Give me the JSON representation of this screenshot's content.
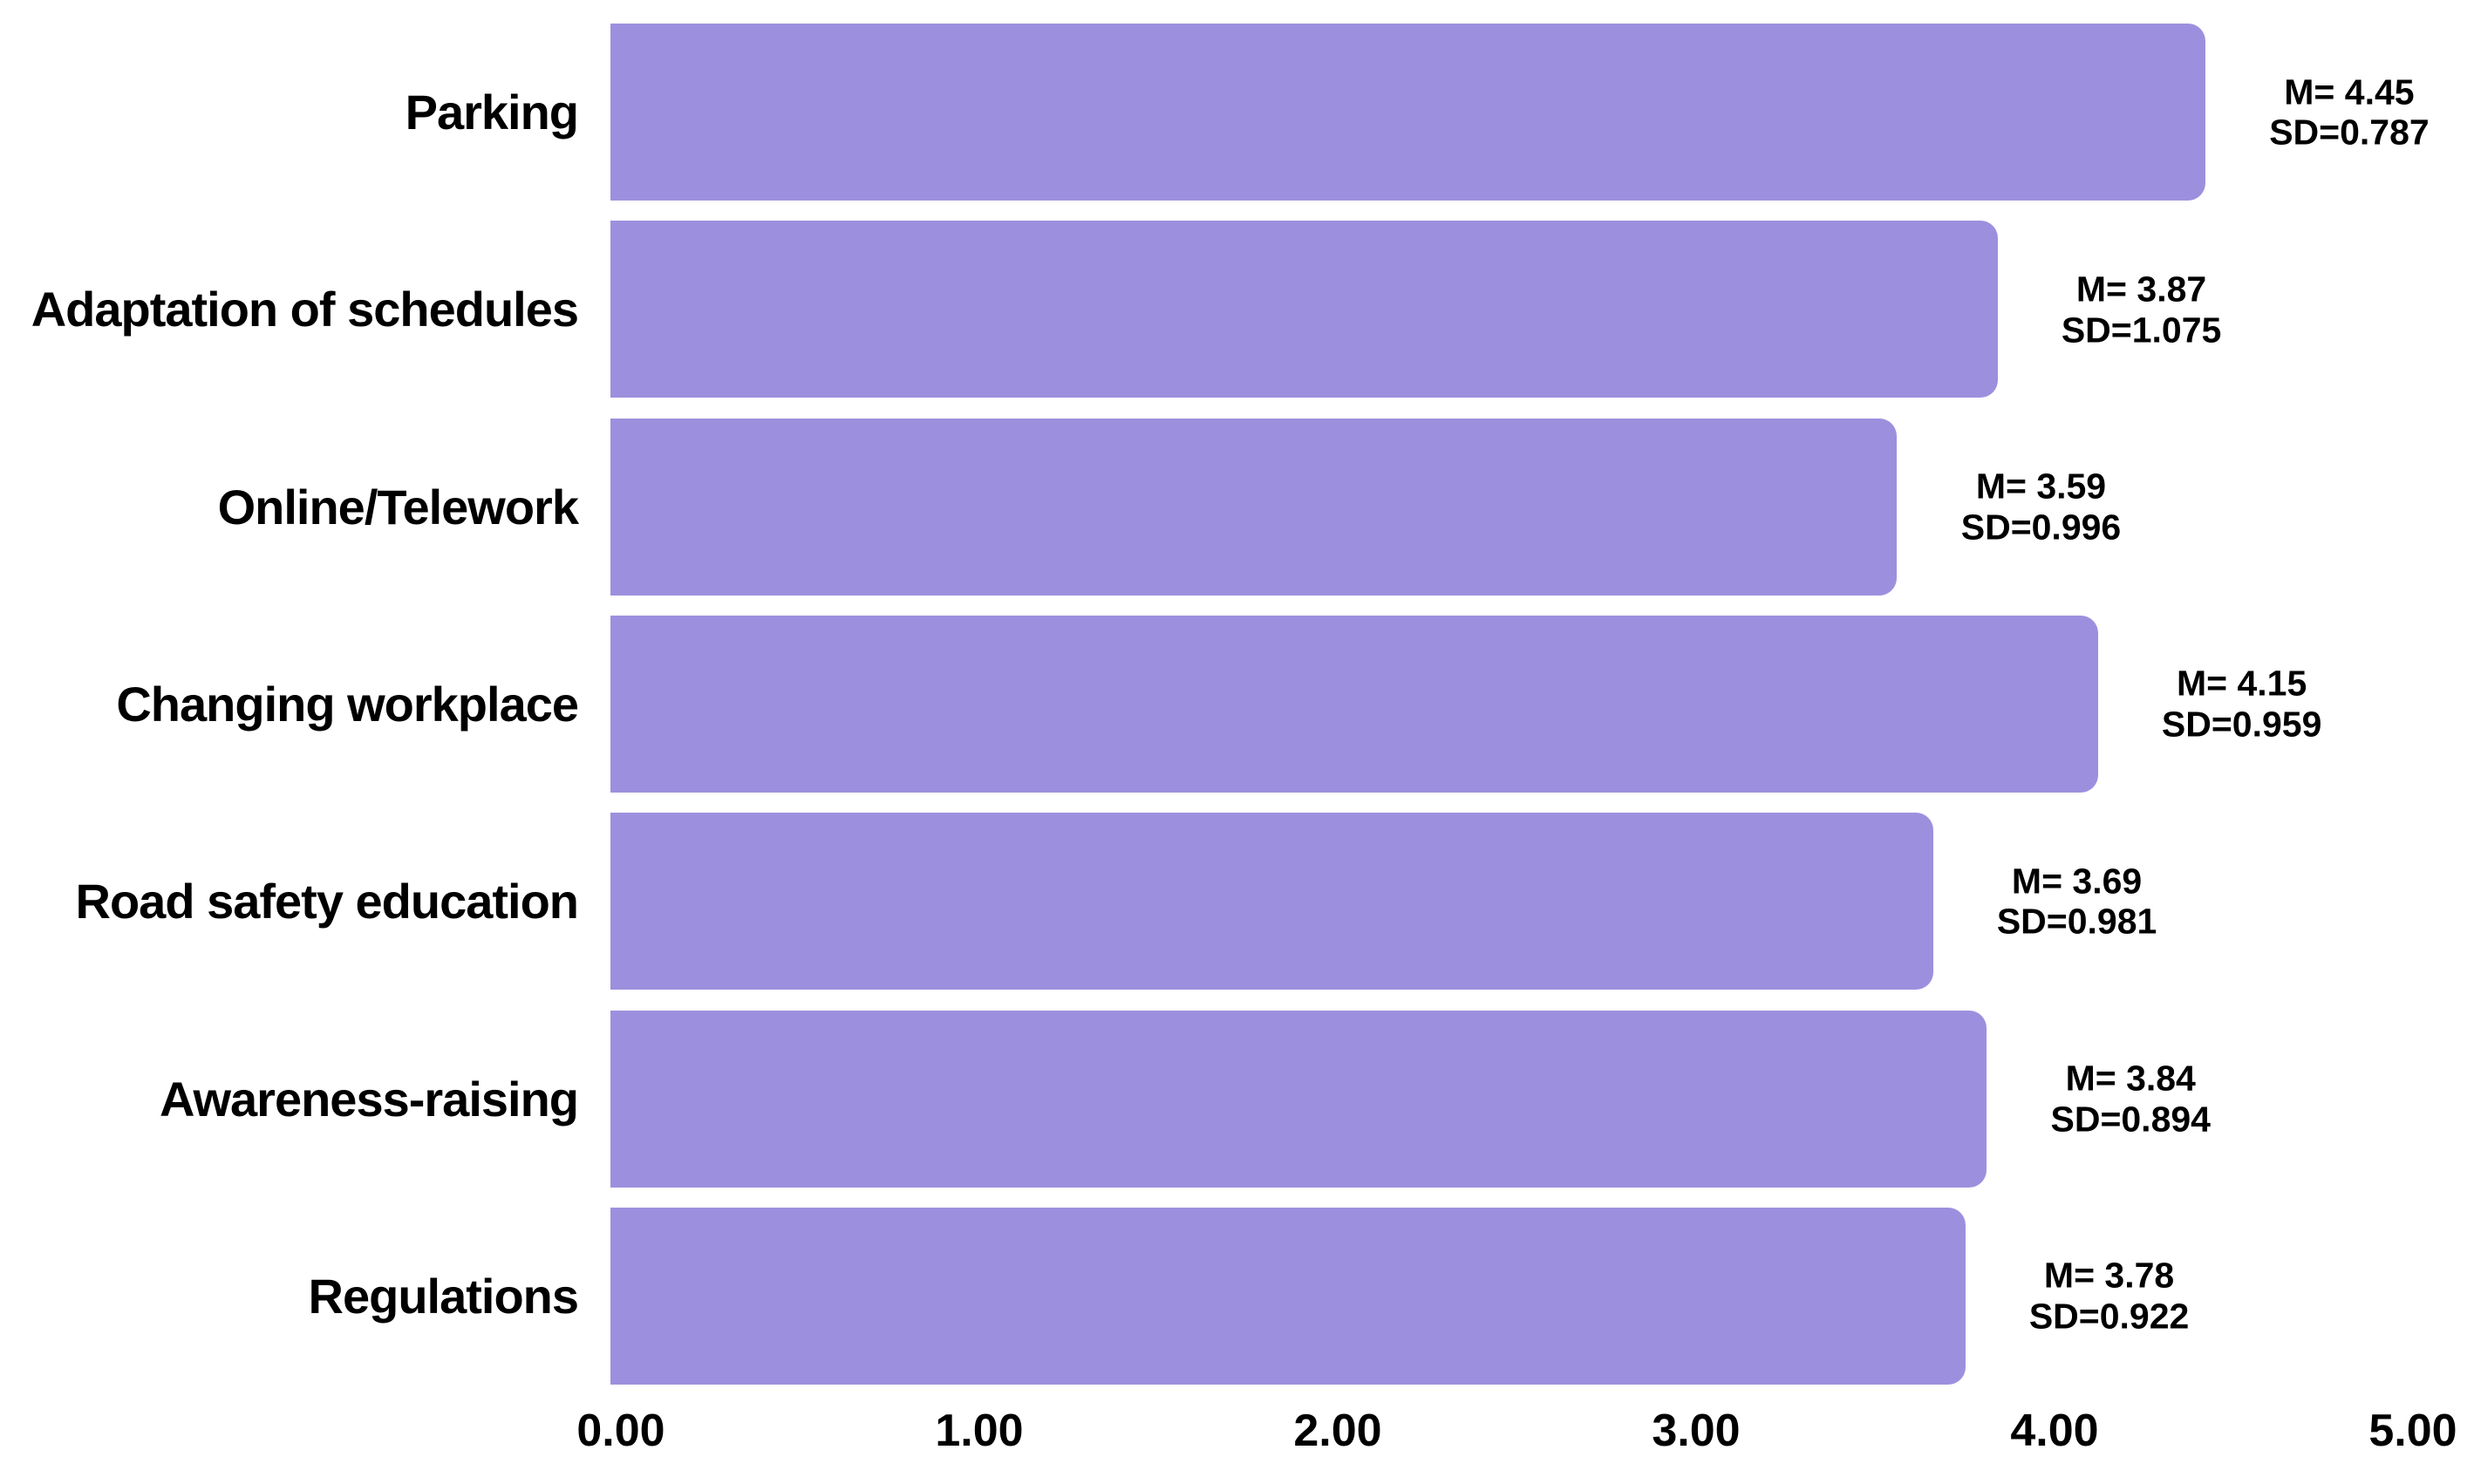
{
  "chart_data": {
    "type": "bar",
    "orientation": "horizontal",
    "title": "",
    "xlabel": "",
    "ylabel": "",
    "xlim": [
      0,
      5
    ],
    "grid": false,
    "legend": false,
    "bar_color": "#9C90DE",
    "text_color": "#000000",
    "background_color": "#FFFFFF",
    "categories": [
      "Parking",
      "Adaptation of schedules",
      "Online/Telework",
      "Changing workplace",
      "Road safety education",
      "Awareness-raising",
      "Regulations"
    ],
    "series": [
      {
        "name": "Mean",
        "values": [
          4.45,
          3.87,
          3.59,
          4.15,
          3.69,
          3.84,
          3.78
        ]
      }
    ],
    "sd_values": [
      0.787,
      1.075,
      0.996,
      0.959,
      0.981,
      0.894,
      0.922
    ],
    "annotations": [
      {
        "mean_label": "M= 4.45",
        "sd_label": "SD=0.787"
      },
      {
        "mean_label": "M= 3.87",
        "sd_label": "SD=1.075"
      },
      {
        "mean_label": "M= 3.59",
        "sd_label": "SD=0.996"
      },
      {
        "mean_label": "M= 4.15",
        "sd_label": "SD=0.959"
      },
      {
        "mean_label": "M= 3.69",
        "sd_label": "SD=0.981"
      },
      {
        "mean_label": "M= 3.84",
        "sd_label": "SD=0.894"
      },
      {
        "mean_label": "M= 3.78",
        "sd_label": "SD=0.922"
      }
    ],
    "x_ticks": [
      0,
      1,
      2,
      3,
      4,
      5
    ],
    "x_tick_labels": [
      "0.00",
      "1.00",
      "2.00",
      "3.00",
      "4.00",
      "5.00"
    ]
  }
}
